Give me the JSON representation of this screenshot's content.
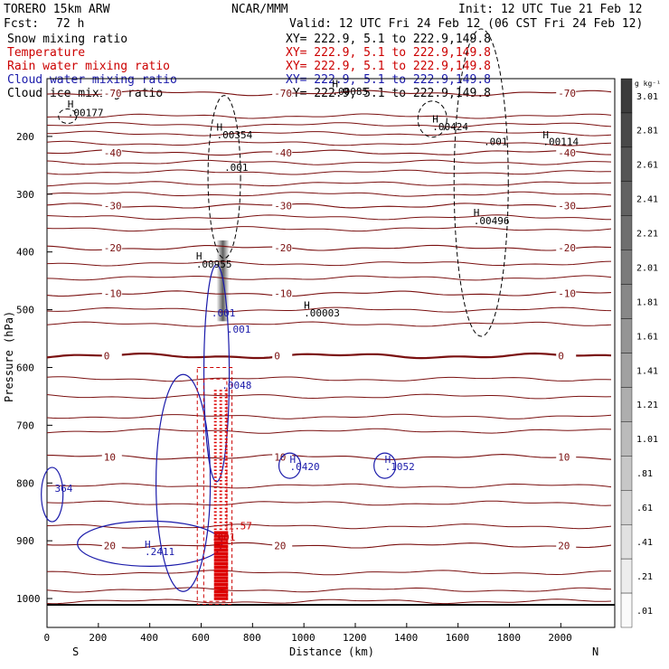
{
  "header": {
    "model": "TORERO  15km ARW",
    "org": "NCAR/MMM",
    "init": "Init: 12 UTC Tue 21 Feb 12",
    "fcst_label": "Fcst:",
    "fcst_value": "72 h",
    "valid": "Valid: 12 UTC Fri 24 Feb 12 (06 CST Fri 24 Feb 12)"
  },
  "legend": {
    "items": [
      {
        "label": "Snow mixing ratio",
        "xy": "",
        "color": "#000000"
      },
      {
        "label": "Temperature",
        "xy": "XY= 222.9,  5.1 to 222.9,149.8",
        "color": "#cc0000"
      },
      {
        "label": "Rain water mixing ratio",
        "xy": "XY= 222.9,  5.1 to 222.9,149.8",
        "color": "#cc0000"
      },
      {
        "label": "Cloud water mixing ratio",
        "xy": "XY= 222.9,  5.1 to 222.9,149.8",
        "color": "#1a1aaa"
      },
      {
        "label": "Cloud ice mixing ratio",
        "xy": "XY= 222.9,  5.1 to 222.9,149.8",
        "color": "#000000"
      }
    ],
    "top_xy": "XY= 222.9,  5.1 to 222.9,149.8"
  },
  "colorbar": {
    "unit": "g kg⁻¹",
    "ticks": [
      "3.01",
      "2.81",
      "2.61",
      "2.41",
      "2.21",
      "2.01",
      "1.81",
      "1.61",
      "1.41",
      "1.21",
      "1.01",
      ".81",
      ".61",
      ".41",
      ".21",
      ".01"
    ]
  },
  "chart_data": {
    "type": "contour",
    "xlabel": "Distance (km)",
    "ylabel": "Pressure (hPa)",
    "x_ticks": [
      0,
      200,
      400,
      600,
      800,
      1000,
      1200,
      1400,
      1600,
      1800,
      2000
    ],
    "y_ticks": [
      200,
      300,
      400,
      500,
      600,
      700,
      800,
      900,
      1000
    ],
    "xlim": [
      0,
      2210
    ],
    "ylim": [
      1050,
      100
    ],
    "left_endpoint": "S",
    "right_endpoint": "N",
    "temperature_contours": [
      {
        "value": -70,
        "label": "-70",
        "p_avg": 125
      },
      {
        "value": -40,
        "label": "-40",
        "p_avg": 228
      },
      {
        "value": -30,
        "label": "-30",
        "p_avg": 320
      },
      {
        "value": -20,
        "label": "-20",
        "p_avg": 393
      },
      {
        "value": -10,
        "label": "-10",
        "p_avg": 472
      },
      {
        "value": 0,
        "label": "0",
        "p_avg": 580
      },
      {
        "value": 10,
        "label": "10",
        "p_avg": 755
      },
      {
        "value": 20,
        "label": "20",
        "p_avg": 908
      }
    ],
    "extrema_labels": [
      {
        "text": "H",
        "x": 80,
        "p": 150
      },
      {
        "text": ".00177",
        "x": 80,
        "p": 165
      },
      {
        "text": "H",
        "x": 1110,
        "p": 115
      },
      {
        "text": ".00085",
        "x": 1110,
        "p": 128
      },
      {
        "text": "H",
        "x": 660,
        "p": 190
      },
      {
        "text": ".00354",
        "x": 660,
        "p": 203
      },
      {
        "text": "H",
        "x": 1500,
        "p": 176
      },
      {
        "text": ".00424",
        "x": 1500,
        "p": 189
      },
      {
        "text": "H",
        "x": 1930,
        "p": 203
      },
      {
        "text": ".00114",
        "x": 1930,
        "p": 215
      },
      {
        "text": ".001",
        "x": 690,
        "p": 260
      },
      {
        "text": ".001",
        "x": 1700,
        "p": 215
      },
      {
        "text": "H",
        "x": 1660,
        "p": 338
      },
      {
        "text": ".00496",
        "x": 1660,
        "p": 352
      },
      {
        "text": "H",
        "x": 580,
        "p": 413
      },
      {
        "text": ".00955",
        "x": 580,
        "p": 427
      },
      {
        "text": "H",
        "x": 1000,
        "p": 498
      },
      {
        "text": ".00003",
        "x": 1000,
        "p": 512
      },
      {
        "text": ".001",
        "x": 640,
        "p": 512
      },
      {
        "text": ".001",
        "x": 700,
        "p": 540
      },
      {
        "text": ".0048",
        "x": 680,
        "p": 637
      },
      {
        "text": "H",
        "x": 945,
        "p": 765
      },
      {
        "text": ".0420",
        "x": 945,
        "p": 778
      },
      {
        "text": "H",
        "x": 1315,
        "p": 765
      },
      {
        "text": ".1052",
        "x": 1315,
        "p": 778
      },
      {
        "text": "364",
        "x": 30,
        "p": 815
      },
      {
        "text": "H",
        "x": 380,
        "p": 912
      },
      {
        "text": ".2411",
        "x": 380,
        "p": 925
      },
      {
        "text": ".001",
        "x": 640,
        "p": 900
      },
      {
        "text": "1.57",
        "x": 705,
        "p": 880
      }
    ]
  }
}
